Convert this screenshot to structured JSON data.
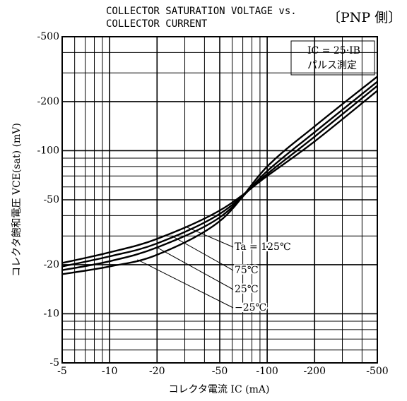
{
  "chart_data": {
    "type": "line",
    "title": "COLLECTOR SATURATION VOLTAGE vs.",
    "title_line2": "COLLECTOR CURRENT",
    "subtitle": "〔PNP 側〕",
    "note_lines": [
      "IC = 25·IB",
      "パルス測定"
    ],
    "xlabel": "コレクタ電流 IC (mA)",
    "ylabel": "コレクタ飽和電圧 VCE(sat) (mV)",
    "log_x": true,
    "log_y": true,
    "grid": true,
    "x": [
      -5,
      -10,
      -20,
      -50,
      -100,
      -200,
      -500
    ],
    "series": [
      {
        "name": "Ta = 125℃",
        "color": "#000000",
        "values": [
          -20.5,
          -23.8,
          -28.8,
          -43,
          -70,
          -114,
          -233
        ]
      },
      {
        "name": "75℃",
        "color": "#000000",
        "values": [
          -19.5,
          -22.5,
          -27,
          -41,
          -72,
          -122,
          -250
        ]
      },
      {
        "name": "25℃",
        "color": "#000000",
        "values": [
          -18.5,
          -21,
          -25.5,
          -39,
          -75,
          -130,
          -265
        ]
      },
      {
        "name": "−25℃",
        "color": "#000000",
        "values": [
          -17.5,
          -19.5,
          -23,
          -37,
          -80,
          -141,
          -285
        ]
      }
    ],
    "xlim": [
      -5,
      -500
    ],
    "ylim": [
      -5,
      -500
    ],
    "xticks": [
      -5,
      -10,
      -20,
      -50,
      -100,
      -200,
      -500
    ],
    "yticks": [
      -5,
      -10,
      -20,
      -50,
      -100,
      -200,
      -500
    ],
    "xminor": [
      -6,
      -7,
      -8,
      -9,
      -30,
      -40,
      -60,
      -70,
      -80,
      -90,
      -300,
      -400
    ],
    "yminor": [
      -6,
      -7,
      -8,
      -9,
      -30,
      -40,
      -60,
      -70,
      -80,
      -90,
      -300,
      -400
    ]
  }
}
